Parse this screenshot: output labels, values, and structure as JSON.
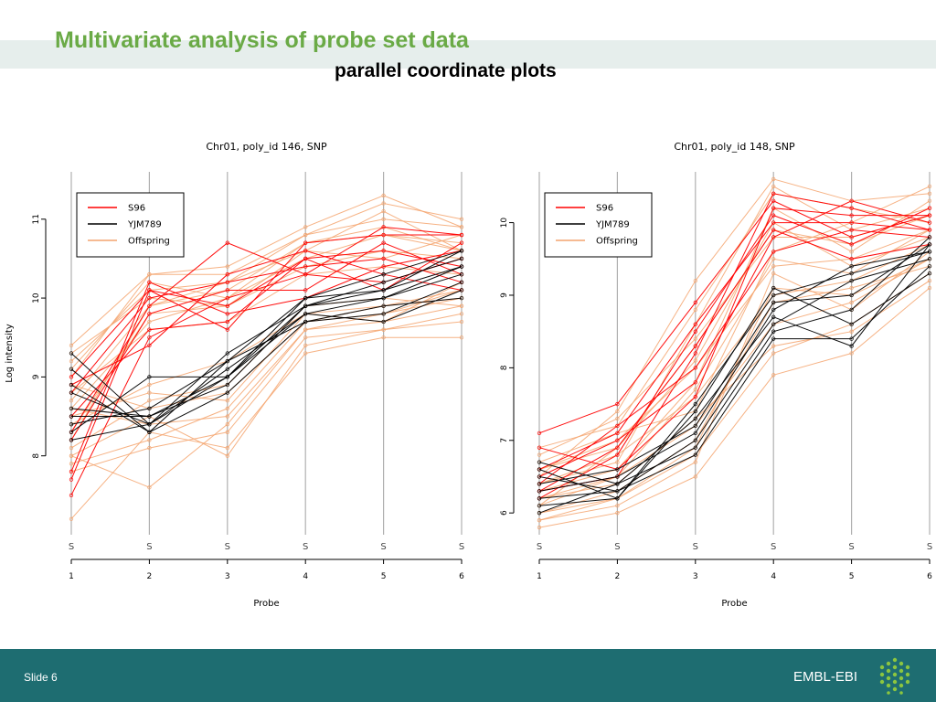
{
  "slide": {
    "title": "Multivariate analysis of probe set data",
    "subtitle": "parallel coordinate plots",
    "slide_number": "Slide 6",
    "logo_text": "EMBL-EBI",
    "colors": {
      "title": "#6aaa46",
      "footer": "#1e6d71",
      "band": "#e6eeec"
    }
  },
  "chart_data": [
    {
      "type": "line",
      "title": "Chr01, poly_id 146, SNP",
      "xlabel": "Probe",
      "ylabel": "Log intensity",
      "x": [
        1,
        2,
        3,
        4,
        5,
        6
      ],
      "xticks": [
        "1",
        "2",
        "3",
        "4",
        "5",
        "6"
      ],
      "yticks": [
        8,
        9,
        10,
        11
      ],
      "ylim": [
        7.0,
        11.6
      ],
      "grid": "vertical",
      "point_marker": "S",
      "legend": [
        "S96",
        "YJM789",
        "Offspring"
      ],
      "legend_position": "top-left",
      "colors": {
        "S96": "#ff0000",
        "YJM789": "#000000",
        "Offspring": "#f4a46e"
      },
      "series": [
        {
          "name": "S96",
          "lines": [
            [
              7.7,
              10.1,
              9.6,
              10.7,
              10.8,
              10.8
            ],
            [
              8.3,
              9.9,
              10.7,
              10.3,
              10.9,
              10.8
            ],
            [
              8.5,
              9.6,
              9.7,
              10.5,
              10.6,
              10.4
            ],
            [
              7.5,
              9.5,
              10.0,
              10.3,
              10.2,
              10.5
            ],
            [
              8.8,
              10.0,
              10.2,
              10.4,
              10.5,
              10.2
            ],
            [
              7.8,
              10.2,
              9.8,
              10.0,
              10.4,
              10.6
            ],
            [
              8.9,
              9.4,
              10.3,
              10.6,
              10.3,
              10.1
            ],
            [
              8.2,
              9.8,
              10.1,
              10.1,
              10.7,
              10.3
            ],
            [
              9.0,
              10.1,
              9.9,
              10.5,
              10.1,
              10.7
            ]
          ]
        },
        {
          "name": "YJM789",
          "lines": [
            [
              8.2,
              8.4,
              9.0,
              10.0,
              10.1,
              10.6
            ],
            [
              8.8,
              8.4,
              9.3,
              9.9,
              10.1,
              10.4
            ],
            [
              9.1,
              8.3,
              9.2,
              9.7,
              9.8,
              10.2
            ],
            [
              8.3,
              9.0,
              9.0,
              9.8,
              10.0,
              10.3
            ],
            [
              8.6,
              8.5,
              8.9,
              9.9,
              10.2,
              10.5
            ],
            [
              9.3,
              8.4,
              9.1,
              9.8,
              9.7,
              10.1
            ],
            [
              8.4,
              8.6,
              9.2,
              10.0,
              10.3,
              10.6
            ],
            [
              8.9,
              8.3,
              8.8,
              9.7,
              9.9,
              10.0
            ],
            [
              8.5,
              8.5,
              9.0,
              9.9,
              10.0,
              10.4
            ]
          ]
        },
        {
          "name": "Offspring",
          "lines": [
            [
              7.2,
              8.3,
              8.1,
              9.3,
              9.5,
              9.5
            ],
            [
              8.0,
              7.6,
              8.4,
              9.6,
              9.7,
              9.9
            ],
            [
              8.5,
              8.8,
              8.7,
              9.8,
              9.9,
              10.0
            ],
            [
              9.4,
              10.3,
              10.4,
              10.9,
              11.3,
              10.9
            ],
            [
              9.2,
              10.1,
              10.2,
              10.6,
              11.1,
              10.6
            ],
            [
              8.3,
              9.8,
              9.9,
              10.4,
              10.6,
              10.5
            ],
            [
              8.6,
              9.7,
              10.0,
              10.5,
              10.8,
              10.7
            ],
            [
              8.0,
              8.5,
              8.0,
              9.4,
              9.6,
              9.8
            ],
            [
              7.9,
              8.2,
              8.6,
              9.7,
              9.8,
              10.1
            ],
            [
              8.7,
              9.9,
              10.1,
              10.7,
              10.9,
              10.6
            ],
            [
              9.0,
              10.3,
              10.3,
              10.8,
              11.0,
              10.9
            ],
            [
              8.4,
              8.9,
              9.2,
              9.8,
              9.7,
              10.2
            ],
            [
              8.1,
              8.7,
              8.9,
              9.9,
              10.0,
              9.9
            ],
            [
              9.3,
              10.0,
              9.9,
              10.6,
              10.5,
              10.8
            ],
            [
              8.8,
              9.6,
              9.7,
              10.3,
              10.4,
              10.3
            ],
            [
              7.8,
              8.1,
              8.3,
              9.5,
              9.6,
              9.7
            ],
            [
              8.2,
              9.9,
              10.2,
              10.8,
              11.2,
              11.0
            ],
            [
              8.9,
              8.6,
              8.8,
              9.7,
              9.9,
              10.1
            ],
            [
              9.1,
              10.2,
              10.0,
              10.7,
              10.8,
              10.6
            ],
            [
              8.6,
              8.4,
              8.5,
              9.6,
              9.8,
              10.0
            ]
          ]
        }
      ]
    },
    {
      "type": "line",
      "title": "Chr01, poly_id 148, SNP",
      "xlabel": "Probe",
      "ylabel": "",
      "x": [
        1,
        2,
        3,
        4,
        5,
        6
      ],
      "xticks": [
        "1",
        "2",
        "3",
        "4",
        "5",
        "6"
      ],
      "yticks": [
        6,
        7,
        8,
        9,
        10
      ],
      "ylim": [
        5.7,
        10.7
      ],
      "grid": "vertical",
      "point_marker": "S",
      "legend": [
        "S96",
        "YJM789",
        "Offspring"
      ],
      "legend_position": "top-left",
      "colors": {
        "S96": "#ff0000",
        "YJM789": "#000000",
        "Offspring": "#f4a46e"
      },
      "series": [
        {
          "name": "S96",
          "lines": [
            [
              7.1,
              7.5,
              8.9,
              10.3,
              9.8,
              10.1
            ],
            [
              6.3,
              6.5,
              8.2,
              10.4,
              10.2,
              9.9
            ],
            [
              6.5,
              7.0,
              7.8,
              9.8,
              10.3,
              10.0
            ],
            [
              6.2,
              6.8,
              8.5,
              10.1,
              9.7,
              10.2
            ],
            [
              6.4,
              7.2,
              8.0,
              9.6,
              9.9,
              9.8
            ],
            [
              6.9,
              6.6,
              7.6,
              10.2,
              10.1,
              10.1
            ],
            [
              6.3,
              6.9,
              8.3,
              9.9,
              9.5,
              9.7
            ],
            [
              6.6,
              7.1,
              8.6,
              10.0,
              10.0,
              9.9
            ]
          ]
        },
        {
          "name": "YJM789",
          "lines": [
            [
              6.7,
              6.4,
              7.3,
              8.7,
              8.3,
              9.7
            ],
            [
              6.1,
              6.2,
              7.5,
              9.0,
              9.3,
              9.6
            ],
            [
              6.5,
              6.3,
              6.8,
              8.4,
              8.4,
              9.4
            ],
            [
              6.4,
              6.6,
              7.2,
              8.9,
              9.0,
              9.7
            ],
            [
              6.2,
              6.3,
              7.0,
              8.6,
              9.2,
              9.5
            ],
            [
              6.6,
              6.2,
              7.4,
              9.1,
              8.6,
              9.3
            ],
            [
              6.3,
              6.5,
              7.1,
              8.8,
              9.4,
              9.6
            ],
            [
              6.0,
              6.4,
              6.9,
              8.5,
              8.8,
              9.8
            ]
          ]
        },
        {
          "name": "Offspring",
          "lines": [
            [
              5.8,
              6.0,
              6.5,
              7.9,
              8.2,
              9.1
            ],
            [
              6.0,
              6.2,
              6.8,
              8.2,
              8.6,
              9.3
            ],
            [
              6.2,
              6.5,
              7.2,
              8.6,
              8.9,
              9.5
            ],
            [
              6.4,
              6.8,
              7.6,
              9.0,
              9.2,
              9.7
            ],
            [
              6.6,
              7.0,
              8.0,
              9.4,
              9.5,
              9.9
            ],
            [
              6.8,
              7.3,
              8.4,
              9.8,
              9.8,
              10.1
            ],
            [
              6.5,
              7.4,
              9.2,
              10.6,
              10.3,
              10.4
            ],
            [
              5.9,
              6.1,
              6.7,
              9.3,
              8.8,
              9.6
            ],
            [
              6.3,
              6.6,
              7.8,
              10.2,
              9.6,
              10.3
            ],
            [
              6.1,
              6.9,
              8.1,
              10.0,
              9.4,
              9.8
            ],
            [
              6.7,
              7.1,
              7.4,
              9.6,
              10.0,
              10.5
            ],
            [
              6.0,
              6.3,
              7.0,
              8.9,
              9.1,
              9.4
            ],
            [
              6.4,
              6.7,
              8.6,
              10.5,
              9.9,
              10.2
            ],
            [
              6.2,
              6.4,
              7.3,
              8.3,
              8.5,
              9.2
            ],
            [
              6.9,
              7.2,
              8.8,
              10.4,
              10.2,
              10.0
            ],
            [
              5.9,
              6.2,
              6.9,
              9.1,
              9.0,
              9.5
            ],
            [
              6.6,
              6.9,
              8.3,
              9.9,
              9.7,
              10.1
            ],
            [
              6.1,
              6.5,
              7.7,
              9.5,
              9.3,
              9.9
            ]
          ]
        }
      ]
    }
  ]
}
